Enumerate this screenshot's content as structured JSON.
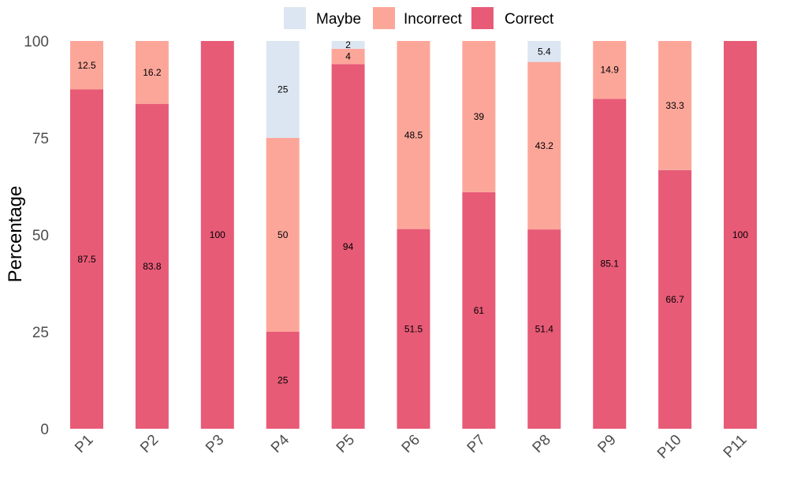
{
  "chart_data": {
    "type": "bar",
    "stacked": true,
    "title": "",
    "xlabel": "",
    "ylabel": "Percentage",
    "ylim": [
      0,
      100
    ],
    "yticks": [
      "0",
      "25",
      "50",
      "75",
      "100"
    ],
    "ytick_values": [
      0,
      25,
      50,
      75,
      100
    ],
    "grid": false,
    "legend_position": "top",
    "categories": [
      "P1",
      "P2",
      "P3",
      "P4",
      "P5",
      "P6",
      "P7",
      "P8",
      "P9",
      "P10",
      "P11"
    ],
    "series": [
      {
        "name": "Correct",
        "color": "#E75B77",
        "values": [
          87.5,
          83.8,
          100,
          25,
          94,
          51.5,
          61,
          51.4,
          85.1,
          66.7,
          100
        ],
        "labels": [
          "87.5",
          "83.8",
          "100",
          "25",
          "94",
          "51.5",
          "61",
          "51.4",
          "85.1",
          "66.7",
          "100"
        ]
      },
      {
        "name": "Incorrect",
        "color": "#FCA69A",
        "values": [
          12.5,
          16.2,
          0,
          50,
          4,
          48.5,
          39,
          43.2,
          14.9,
          33.3,
          0
        ],
        "labels": [
          "12.5",
          "16.2",
          "",
          "50",
          "4",
          "48.5",
          "39",
          "43.2",
          "14.9",
          "33.3",
          ""
        ]
      },
      {
        "name": "Maybe",
        "color": "#DCE6F2",
        "values": [
          0,
          0,
          0,
          25,
          2,
          0,
          0,
          5.4,
          0,
          0,
          0
        ],
        "labels": [
          "",
          "",
          "",
          "25",
          "2",
          "",
          "",
          "5.4",
          "",
          "",
          ""
        ]
      }
    ],
    "legend_order": [
      "Maybe",
      "Incorrect",
      "Correct"
    ]
  }
}
